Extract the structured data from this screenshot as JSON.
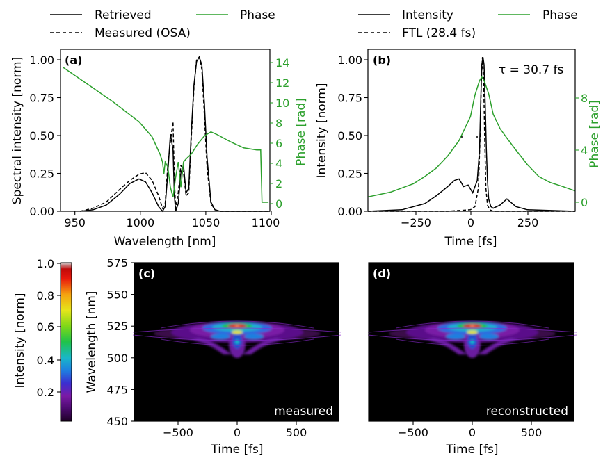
{
  "colors": {
    "black": "#000000",
    "green": "#2ca02c"
  },
  "chart_data": [
    {
      "panel": "(a)",
      "type": "line",
      "xlabel": "Wavelength [nm]",
      "ylabel": "Spectral intensity [norm]",
      "y2label": "Phase [rad]",
      "xlim": [
        940,
        1100
      ],
      "ylim": [
        0,
        1.05
      ],
      "y2lim": [
        -0.9,
        15.2
      ],
      "xticks": [
        "950",
        "1000",
        "1050",
        "1100"
      ],
      "yticks": [
        "0.00",
        "0.25",
        "0.50",
        "0.75",
        "1.00"
      ],
      "y2ticks": [
        "0",
        "2",
        "4",
        "6",
        "8",
        "10",
        "12",
        "14"
      ],
      "legend": [
        "Retrieved",
        "Measured (OSA)",
        "Phase"
      ],
      "series": [
        {
          "name": "Retrieved",
          "axis": "left",
          "style": "solid",
          "x": [
            955,
            965,
            975,
            985,
            993,
            1000,
            1005,
            1010,
            1015,
            1018,
            1020,
            1022,
            1024,
            1026,
            1027,
            1028,
            1030,
            1032,
            1034,
            1036,
            1038,
            1040,
            1042,
            1044,
            1046,
            1048,
            1050,
            1052,
            1055,
            1058,
            1062,
            1070,
            1100
          ],
          "y": [
            0.0,
            0.01,
            0.04,
            0.11,
            0.18,
            0.21,
            0.19,
            0.12,
            0.03,
            0.0,
            0.03,
            0.25,
            0.5,
            0.4,
            0.1,
            0.0,
            0.05,
            0.25,
            0.3,
            0.12,
            0.15,
            0.52,
            0.82,
            0.97,
            1.0,
            0.95,
            0.7,
            0.35,
            0.06,
            0.01,
            0.0,
            0.0,
            0.0
          ]
        },
        {
          "name": "Measured (OSA)",
          "axis": "left",
          "style": "dashed",
          "x": [
            955,
            965,
            975,
            985,
            993,
            1000,
            1005,
            1010,
            1015,
            1018,
            1020,
            1022,
            1024,
            1026,
            1027,
            1028,
            1030,
            1032,
            1034,
            1036,
            1038,
            1040,
            1042,
            1044,
            1046,
            1048,
            1050,
            1052,
            1055,
            1058,
            1062,
            1070,
            1100
          ],
          "y": [
            0.0,
            0.02,
            0.06,
            0.14,
            0.2,
            0.24,
            0.25,
            0.2,
            0.1,
            0.02,
            0.05,
            0.3,
            0.45,
            0.58,
            0.2,
            0.02,
            0.12,
            0.3,
            0.25,
            0.1,
            0.12,
            0.48,
            0.8,
            0.98,
            1.0,
            0.92,
            0.62,
            0.28,
            0.05,
            0.01,
            0.0,
            0.0,
            0.0
          ]
        },
        {
          "name": "Phase",
          "axis": "right",
          "style": "solid",
          "x": [
            942,
            960,
            980,
            1000,
            1010,
            1016,
            1018,
            1019,
            1020,
            1022,
            1024,
            1026,
            1028,
            1030,
            1032,
            1034,
            1036,
            1040,
            1045,
            1050,
            1055,
            1060,
            1070,
            1080,
            1090,
            1093,
            1094,
            1099
          ],
          "y": [
            13.4,
            11.8,
            10.0,
            8.0,
            6.5,
            4.8,
            4.0,
            2.8,
            4.0,
            3.5,
            1.5,
            0.5,
            2.5,
            4.0,
            1.5,
            4.0,
            4.3,
            4.8,
            5.8,
            6.6,
            7.0,
            6.7,
            6.0,
            5.4,
            5.2,
            5.2,
            0.0,
            0.0
          ]
        }
      ]
    },
    {
      "panel": "(b)",
      "type": "line",
      "xlabel": "Time [fs]",
      "ylabel": "Intensity [norm]",
      "y2label": "Phase [rad]",
      "xlim": [
        -450,
        460
      ],
      "ylim": [
        0,
        1.05
      ],
      "y2lim": [
        -0.9,
        12.6
      ],
      "xticks": [
        "−250",
        "0",
        "250"
      ],
      "yticks": [
        "0.00",
        "0.25",
        "0.50",
        "0.75",
        "1.00"
      ],
      "y2ticks": [
        "0",
        "4",
        "8"
      ],
      "legend": [
        "Intensity",
        "FTL (28.4 fs)",
        "Phase"
      ],
      "annotation": "τ = 30.7 fs",
      "series": [
        {
          "name": "Intensity",
          "axis": "left",
          "style": "solid",
          "x": [
            -450,
            -300,
            -200,
            -150,
            -100,
            -70,
            -50,
            -30,
            -10,
            10,
            30,
            40,
            45,
            50,
            55,
            60,
            65,
            70,
            75,
            80,
            90,
            100,
            130,
            160,
            200,
            250,
            460
          ],
          "y": [
            0.0,
            0.01,
            0.05,
            0.1,
            0.16,
            0.2,
            0.21,
            0.16,
            0.17,
            0.12,
            0.2,
            0.4,
            0.7,
            0.95,
            1.0,
            0.95,
            0.7,
            0.4,
            0.2,
            0.08,
            0.03,
            0.02,
            0.04,
            0.08,
            0.03,
            0.01,
            0.0
          ]
        },
        {
          "name": "FTL (28.4 fs)",
          "axis": "left",
          "style": "dashed",
          "x": [
            -450,
            -100,
            0,
            20,
            35,
            42,
            48,
            53,
            58,
            63,
            68,
            75,
            85,
            100,
            460
          ],
          "y": [
            0.0,
            0.0,
            0.01,
            0.03,
            0.15,
            0.45,
            0.85,
            1.0,
            0.85,
            0.45,
            0.15,
            0.04,
            0.01,
            0.0,
            0.0
          ]
        },
        {
          "name": "Phase",
          "axis": "right",
          "style": "solid",
          "x": [
            -450,
            -350,
            -250,
            -200,
            -150,
            -100,
            -50,
            0,
            20,
            40,
            50,
            60,
            80,
            100,
            130,
            160,
            200,
            250,
            300,
            350,
            400,
            460
          ],
          "y": [
            0.3,
            0.7,
            1.4,
            2.0,
            2.7,
            3.7,
            5.0,
            7.0,
            8.8,
            10.0,
            10.3,
            10.0,
            8.9,
            7.2,
            6.0,
            5.2,
            4.2,
            3.0,
            2.0,
            1.5,
            1.2,
            0.8
          ]
        }
      ]
    },
    {
      "panel": "(c)",
      "type": "heatmap",
      "xlabel": "Time [fs]",
      "ylabel": "Wavelength [nm]",
      "xlim": [
        -810,
        820
      ],
      "ylim": [
        450,
        575
      ],
      "xticks": [
        "−500",
        "0",
        "500"
      ],
      "yticks": [
        "450",
        "475",
        "500",
        "525",
        "550",
        "575"
      ],
      "label": "measured"
    },
    {
      "panel": "(d)",
      "type": "heatmap",
      "xlabel": "Time [fs]",
      "xlim": [
        -810,
        820
      ],
      "xticks": [
        "−500",
        "0",
        "500"
      ],
      "label": "reconstructed"
    },
    {
      "panel": "colorbar",
      "type": "heatmap",
      "ylabel": "Intensity [norm]",
      "range": [
        0,
        1
      ],
      "ticks": [
        "0.2",
        "0.4",
        "0.6",
        "0.8",
        "1.0"
      ]
    }
  ]
}
